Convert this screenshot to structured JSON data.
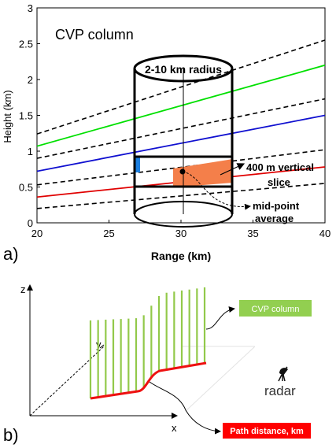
{
  "panel_a": {
    "label": "a)",
    "title": "CVP column",
    "cylinder_label": "2-10 km radius",
    "slice_label_line1": "400 m vertical",
    "slice_label_line2": "slice",
    "midpoint_label_line1": "mid-point",
    "midpoint_label_line2": "average",
    "colors": {
      "green": "#00e000",
      "blue": "#1010d0",
      "red": "#e00000",
      "dashed": "#000000",
      "slice_fill": "#f47f4a",
      "slice_edge": "#1c7fe0"
    }
  },
  "chart_data": {
    "type": "line",
    "xlabel": "Range (km)",
    "ylabel": "Height (km)",
    "xlim": [
      20,
      40
    ],
    "ylim": [
      0,
      3
    ],
    "x_ticks": [
      "20",
      "25",
      "30",
      "35",
      "40"
    ],
    "y_ticks": [
      "0",
      "0.5",
      "1",
      "1.5",
      "2",
      "2.5",
      "3"
    ],
    "series": [
      {
        "style": "dashed",
        "color": "#000000",
        "x": [
          20,
          40
        ],
        "y": [
          0.2,
          0.55
        ]
      },
      {
        "style": "solid",
        "color": "#e00000",
        "x": [
          20,
          40
        ],
        "y": [
          0.36,
          0.78
        ]
      },
      {
        "style": "dashed",
        "color": "#000000",
        "x": [
          20,
          40
        ],
        "y": [
          0.53,
          1.02
        ]
      },
      {
        "style": "solid",
        "color": "#1010d0",
        "x": [
          20,
          40
        ],
        "y": [
          0.72,
          1.5
        ]
      },
      {
        "style": "dashed",
        "color": "#000000",
        "x": [
          20,
          40
        ],
        "y": [
          0.9,
          1.73
        ]
      },
      {
        "style": "solid",
        "color": "#00e000",
        "x": [
          20,
          40
        ],
        "y": [
          1.07,
          2.2
        ]
      },
      {
        "style": "dashed",
        "color": "#000000",
        "x": [
          20,
          40
        ],
        "y": [
          1.24,
          2.55
        ]
      }
    ]
  },
  "panel_b": {
    "label": "b)",
    "axis_z": "z",
    "axis_x": "x",
    "axis_y": "y",
    "radar_label": "radar",
    "cvp_box_label": "CVP column",
    "path_box_label": "Path distance, km",
    "colors": {
      "stripes": "#92c94a",
      "path": "#ee1111",
      "cvp_box": "#92cf50",
      "path_box": "#ff0000"
    },
    "radar_icon": "satellite-dish-icon"
  }
}
